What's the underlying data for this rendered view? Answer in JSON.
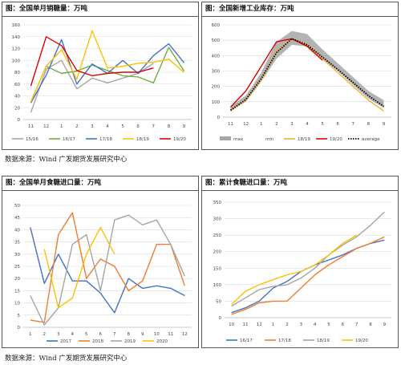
{
  "source1": "数据来源：Wind 广发期货发展研究中心",
  "source2": "数据来源：Wind 广发期货发展研究中心",
  "chart_data": [
    {
      "id": "sales",
      "type": "line",
      "title": "图：全国单月销糖量：万吨",
      "categories": [
        "11",
        "12",
        "1",
        "2",
        "3",
        "4",
        "5",
        "6",
        "7",
        "8",
        "9"
      ],
      "ylim": [
        0,
        160
      ],
      "yticks": [
        0,
        20,
        40,
        60,
        80,
        100,
        120,
        140,
        160
      ],
      "grid": true,
      "legend": "bottom",
      "series": [
        {
          "name": "15/16",
          "color": "#a5a5a5",
          "values": [
            12,
            85,
            100,
            52,
            70,
            62,
            70,
            78,
            95,
            null,
            null
          ]
        },
        {
          "name": "16/17",
          "color": "#70ad47",
          "values": [
            30,
            90,
            78,
            82,
            92,
            83,
            74,
            72,
            62,
            122,
            82
          ]
        },
        {
          "name": "17/18",
          "color": "#4472c4",
          "values": [
            28,
            75,
            135,
            60,
            94,
            78,
            100,
            78,
            108,
            128,
            96
          ]
        },
        {
          "name": "18/19",
          "color": "#ffc000",
          "values": [
            30,
            90,
            118,
            68,
            150,
            87,
            90,
            95,
            97,
            102,
            80
          ]
        },
        {
          "name": "19/20",
          "color": "#e00000",
          "values": [
            57,
            140,
            125,
            83,
            74,
            78,
            80,
            80,
            87,
            null,
            null
          ]
        }
      ]
    },
    {
      "id": "inventory",
      "type": "line",
      "title": "图：全国新增工业库存：万吨",
      "categories": [
        "11",
        "12",
        "1",
        "2",
        "3",
        "4",
        "5",
        "6",
        "7",
        "8",
        "9"
      ],
      "ylim": [
        0,
        600
      ],
      "yticks": [
        0,
        100,
        200,
        300,
        400,
        500,
        600
      ],
      "grid": true,
      "legend": "bottom",
      "band": {
        "name": "max",
        "min_name": "min",
        "color": "#a6a6a6",
        "max": [
          70,
          140,
          290,
          490,
          560,
          540,
          440,
          350,
          260,
          170,
          110
        ],
        "min": [
          40,
          100,
          230,
          380,
          470,
          460,
          380,
          300,
          210,
          120,
          60
        ]
      },
      "series": [
        {
          "name": "18/19",
          "color": "#f2b134",
          "values": [
            40,
            110,
            240,
            430,
            510,
            470,
            380,
            290,
            200,
            110,
            40
          ]
        },
        {
          "name": "19/20",
          "color": "#e00000",
          "values": [
            65,
            170,
            330,
            490,
            510,
            460,
            370,
            null,
            null,
            null,
            null
          ]
        },
        {
          "name": "average",
          "color": "#000000",
          "dashed": true,
          "values": [
            45,
            115,
            250,
            420,
            510,
            470,
            390,
            310,
            225,
            140,
            70
          ]
        }
      ]
    },
    {
      "id": "imports_monthly",
      "type": "line",
      "title": "图：全国单月食糖进口量：万吨",
      "categories": [
        "1",
        "2",
        "3",
        "4",
        "5",
        "6",
        "7",
        "8",
        "9",
        "10",
        "11",
        "12"
      ],
      "ylim": [
        0,
        50
      ],
      "yticks": [
        0,
        5,
        10,
        15,
        20,
        25,
        30,
        35,
        40,
        45,
        50
      ],
      "grid": true,
      "legend": "bottom",
      "series": [
        {
          "name": "2017",
          "color": "#4472c4",
          "values": [
            41,
            18,
            30,
            19,
            19,
            14,
            6,
            20,
            16,
            17,
            16,
            13
          ]
        },
        {
          "name": "2018",
          "color": "#ed7d31",
          "values": [
            3,
            2,
            38,
            47,
            20,
            28,
            25,
            15,
            19,
            34,
            34,
            17
          ]
        },
        {
          "name": "2019",
          "color": "#a5a5a5",
          "values": [
            13,
            1,
            8,
            34,
            38,
            15,
            44,
            46,
            42,
            44,
            34,
            21
          ]
        },
        {
          "name": "2020",
          "color": "#ffc000",
          "values": [
            null,
            32,
            8,
            12,
            30,
            41,
            30,
            null,
            null,
            null,
            null,
            null
          ]
        }
      ]
    },
    {
      "id": "imports_cumulative",
      "type": "line",
      "title": "图：累计食糖进口量：万吨",
      "categories": [
        "10",
        "11",
        "12",
        "1",
        "2",
        "3",
        "4",
        "5",
        "6",
        "7",
        "8",
        "9"
      ],
      "ylim": [
        0,
        350
      ],
      "yticks": [
        0,
        50,
        100,
        150,
        200,
        250,
        300,
        350
      ],
      "grid": true,
      "legend": "bottom",
      "series": [
        {
          "name": "16/17",
          "color": "#4472c4",
          "values": [
            15,
            30,
            50,
            90,
            110,
            140,
            160,
            175,
            190,
            210,
            225,
            235
          ]
        },
        {
          "name": "17/18",
          "color": "#ed7d31",
          "values": [
            10,
            25,
            45,
            50,
            50,
            90,
            130,
            160,
            185,
            210,
            225,
            245
          ]
        },
        {
          "name": "18/19",
          "color": "#a5a5a5",
          "values": [
            35,
            60,
            85,
            95,
            100,
            120,
            150,
            190,
            220,
            245,
            280,
            320
          ]
        },
        {
          "name": "19/20",
          "color": "#ffc000",
          "values": [
            40,
            80,
            100,
            115,
            130,
            140,
            160,
            190,
            225,
            250,
            null,
            null
          ]
        }
      ]
    }
  ]
}
